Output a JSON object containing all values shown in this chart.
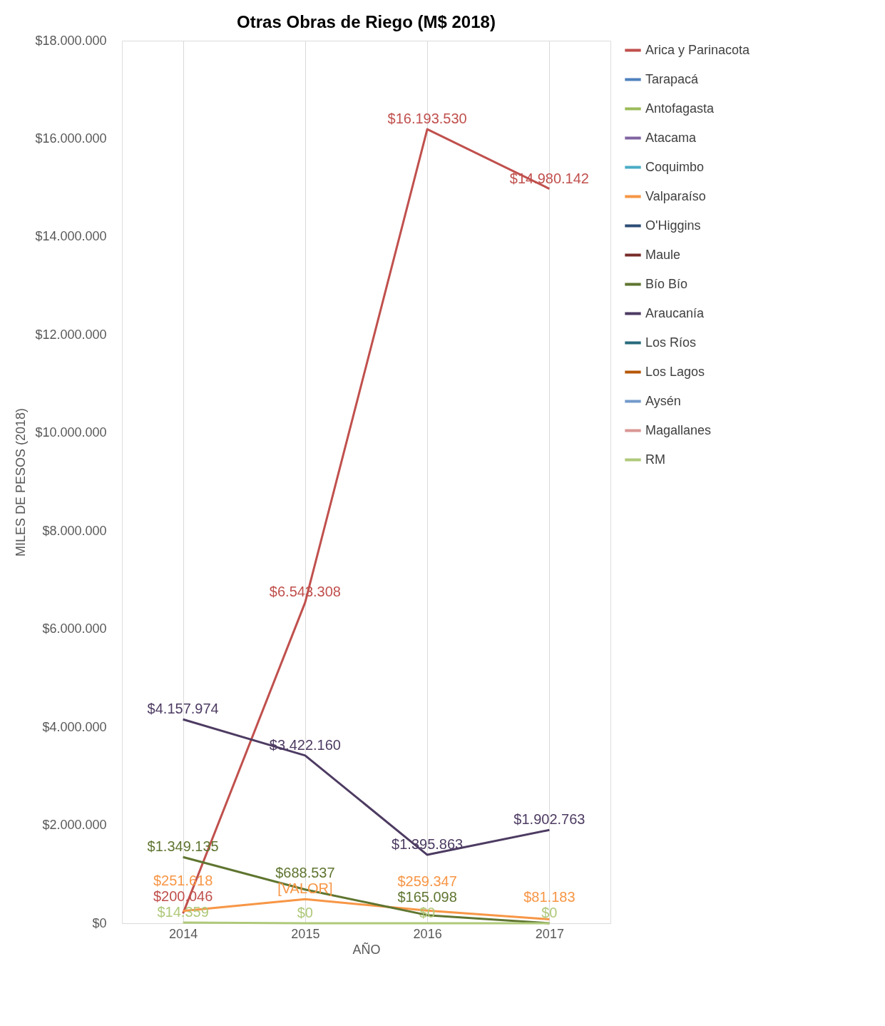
{
  "chart_data": {
    "type": "line",
    "title": "Otras Obras de Riego (M$ 2018)",
    "xlabel": "AÑO",
    "ylabel": "MILES DE PESOS (2018)",
    "categories": [
      "2014",
      "2015",
      "2016",
      "2017"
    ],
    "ylim": [
      0,
      18000000
    ],
    "yticks": [
      {
        "value": 0,
        "label": "$0"
      },
      {
        "value": 2000000,
        "label": "$2.000.000"
      },
      {
        "value": 4000000,
        "label": "$4.000.000"
      },
      {
        "value": 6000000,
        "label": "$6.000.000"
      },
      {
        "value": 8000000,
        "label": "$8.000.000"
      },
      {
        "value": 10000000,
        "label": "$10.000.000"
      },
      {
        "value": 12000000,
        "label": "$12.000.000"
      },
      {
        "value": 14000000,
        "label": "$14.000.000"
      },
      {
        "value": 16000000,
        "label": "$16.000.000"
      },
      {
        "value": 18000000,
        "label": "$18.000.000"
      }
    ],
    "grid": "x",
    "legend": "right",
    "marker": "none",
    "line_style": "solid",
    "series": [
      {
        "name": "Arica y Parinacota",
        "color": "#c0504d",
        "values": [
          200046,
          6543308,
          16193530,
          14980142
        ],
        "value_labels": [
          "$200.046",
          "$6.543.308",
          "$16.193.530",
          "$14.980.142"
        ]
      },
      {
        "name": "Tarapacá",
        "color": "#4f81bd",
        "values": [
          null,
          null,
          null,
          null
        ]
      },
      {
        "name": "Antofagasta",
        "color": "#9bbb59",
        "values": [
          null,
          null,
          null,
          null
        ]
      },
      {
        "name": "Atacama",
        "color": "#8064a2",
        "values": [
          null,
          null,
          null,
          null
        ]
      },
      {
        "name": "Coquimbo",
        "color": "#4bacc6",
        "values": [
          null,
          null,
          null,
          null
        ]
      },
      {
        "name": "Valparaíso",
        "color": "#f79646",
        "values": [
          251618,
          490000,
          259347,
          81183
        ],
        "value_labels": [
          "$251.618",
          "[VALOR]",
          "$259.347",
          "$81.183"
        ]
      },
      {
        "name": "O'Higgins",
        "color": "#2c4d75",
        "values": [
          null,
          null,
          null,
          null
        ]
      },
      {
        "name": "Maule",
        "color": "#772c2a",
        "values": [
          null,
          null,
          null,
          null
        ]
      },
      {
        "name": "Bío Bío",
        "color": "#5f7530",
        "values": [
          1349135,
          688537,
          165098,
          0
        ],
        "value_labels": [
          "$1.349.135",
          "$688.537",
          "$165.098",
          null
        ]
      },
      {
        "name": "Araucanía",
        "color": "#4d3b62",
        "values": [
          4157974,
          3422160,
          1395863,
          1902763
        ],
        "value_labels": [
          "$4.157.974",
          "$3.422.160",
          "$1.395.863",
          "$1.902.763"
        ]
      },
      {
        "name": "Los Ríos",
        "color": "#276a7c",
        "values": [
          null,
          null,
          null,
          null
        ]
      },
      {
        "name": "Los Lagos",
        "color": "#b65708",
        "values": [
          null,
          null,
          null,
          null
        ]
      },
      {
        "name": "Aysén",
        "color": "#729aca",
        "values": [
          null,
          null,
          null,
          null
        ]
      },
      {
        "name": "Magallanes",
        "color": "#d99694",
        "values": [
          null,
          null,
          null,
          null
        ]
      },
      {
        "name": "RM",
        "color": "#afc97a",
        "values": [
          14359,
          0,
          0,
          0
        ],
        "value_labels": [
          "$14.359",
          "$0",
          "$0",
          "$0"
        ]
      }
    ]
  }
}
